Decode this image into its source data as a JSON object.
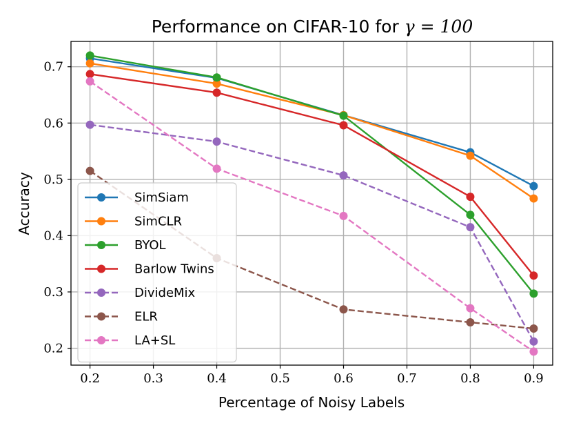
{
  "chart_data": {
    "type": "line",
    "title": "Performance on CIFAR-10 for",
    "title_math": "γ = 100",
    "xlabel": "Percentage of Noisy Labels",
    "ylabel": "Accuracy",
    "xlim": [
      0.17,
      0.93
    ],
    "ylim": [
      0.17,
      0.745
    ],
    "xticks": [
      0.2,
      0.3,
      0.4,
      0.5,
      0.6,
      0.7,
      0.8,
      0.9
    ],
    "xtick_labels": [
      "0.2",
      "0.3",
      "0.4",
      "0.5",
      "0.6",
      "0.7",
      "0.8",
      "0.9"
    ],
    "yticks": [
      0.2,
      0.3,
      0.4,
      0.5,
      0.6,
      0.7
    ],
    "ytick_labels": [
      "0.2",
      "0.3",
      "0.4",
      "0.5",
      "0.6",
      "0.7"
    ],
    "grid": true,
    "legend_position": "lower-left",
    "x": [
      0.2,
      0.4,
      0.6,
      0.8,
      0.9
    ],
    "series": [
      {
        "name": "SimSiam",
        "color": "#1f77b4",
        "dashed": false,
        "values": [
          0.715,
          0.68,
          0.614,
          0.548,
          0.488
        ]
      },
      {
        "name": "SimCLR",
        "color": "#ff7f0e",
        "dashed": false,
        "values": [
          0.706,
          0.67,
          0.614,
          0.542,
          0.466
        ]
      },
      {
        "name": "BYOL",
        "color": "#2ca02c",
        "dashed": false,
        "values": [
          0.72,
          0.681,
          0.613,
          0.437,
          0.297
        ]
      },
      {
        "name": "Barlow Twins",
        "color": "#d62728",
        "dashed": false,
        "values": [
          0.687,
          0.654,
          0.596,
          0.469,
          0.329
        ]
      },
      {
        "name": "DivideMix",
        "color": "#9467bd",
        "dashed": true,
        "values": [
          0.597,
          0.567,
          0.507,
          0.415,
          0.212
        ]
      },
      {
        "name": "ELR",
        "color": "#8c564b",
        "dashed": true,
        "values": [
          0.515,
          0.36,
          0.269,
          0.246,
          0.235
        ]
      },
      {
        "name": "LA+SL",
        "color": "#e377c2",
        "dashed": true,
        "values": [
          0.674,
          0.519,
          0.435,
          0.271,
          0.194
        ]
      }
    ]
  }
}
